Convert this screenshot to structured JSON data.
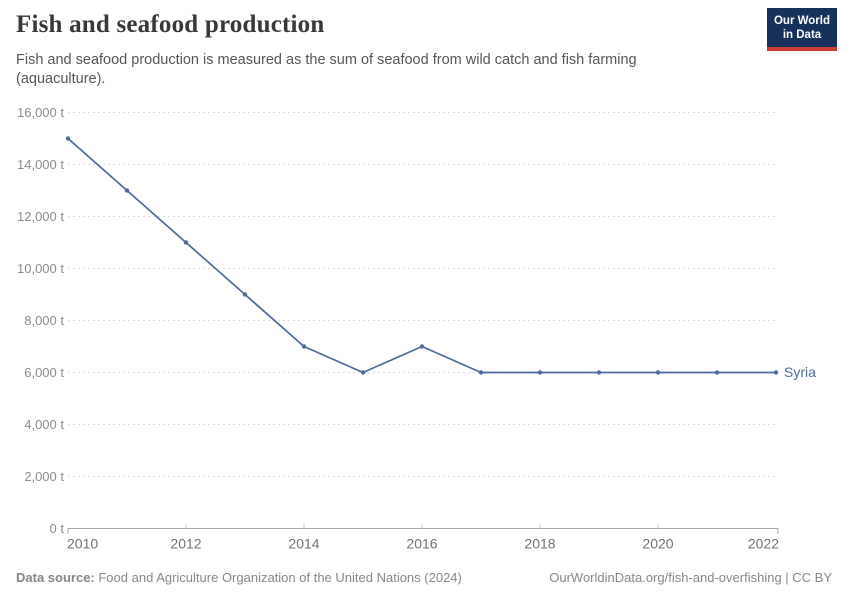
{
  "header": {
    "title": "Fish and seafood production",
    "subtitle": "Fish and seafood production is measured as the sum of seafood from wild catch and fish farming (aquaculture).",
    "logo": {
      "line1": "Our World",
      "line2": "in Data"
    }
  },
  "chart_data": {
    "type": "line",
    "title": "Fish and seafood production",
    "xlabel": "",
    "ylabel": "",
    "x": [
      2010,
      2011,
      2012,
      2013,
      2014,
      2015,
      2016,
      2017,
      2018,
      2019,
      2020,
      2021,
      2022
    ],
    "series": [
      {
        "name": "Syria",
        "color": "#4c6a9c",
        "values": [
          15000,
          13000,
          11000,
          9000,
          7000,
          6000,
          7000,
          6000,
          6000,
          6000,
          6000,
          6000,
          6000
        ]
      }
    ],
    "xlim": [
      2010,
      2022
    ],
    "ylim": [
      0,
      16000
    ],
    "x_ticks": [
      2010,
      2012,
      2014,
      2016,
      2018,
      2020,
      2022
    ],
    "y_ticks": [
      0,
      2000,
      4000,
      6000,
      8000,
      10000,
      12000,
      14000,
      16000
    ],
    "y_tick_suffix": " t",
    "grid": true,
    "legend_position": "end-of-line"
  },
  "footer": {
    "source_label": "Data source:",
    "source_text": " Food and Agriculture Organization of the United Nations (2024)",
    "link_text": "OurWorldinData.org/fish-and-overfishing | CC BY"
  },
  "colors": {
    "line": "#4c6a9c",
    "grid": "#dcdcdc",
    "axis": "#a6a6a6",
    "tick": "#cccccc",
    "y_label": "#8d8d8d",
    "x_label": "#727272",
    "logo_bg": "#16325a",
    "logo_red": "#cf3c32"
  }
}
